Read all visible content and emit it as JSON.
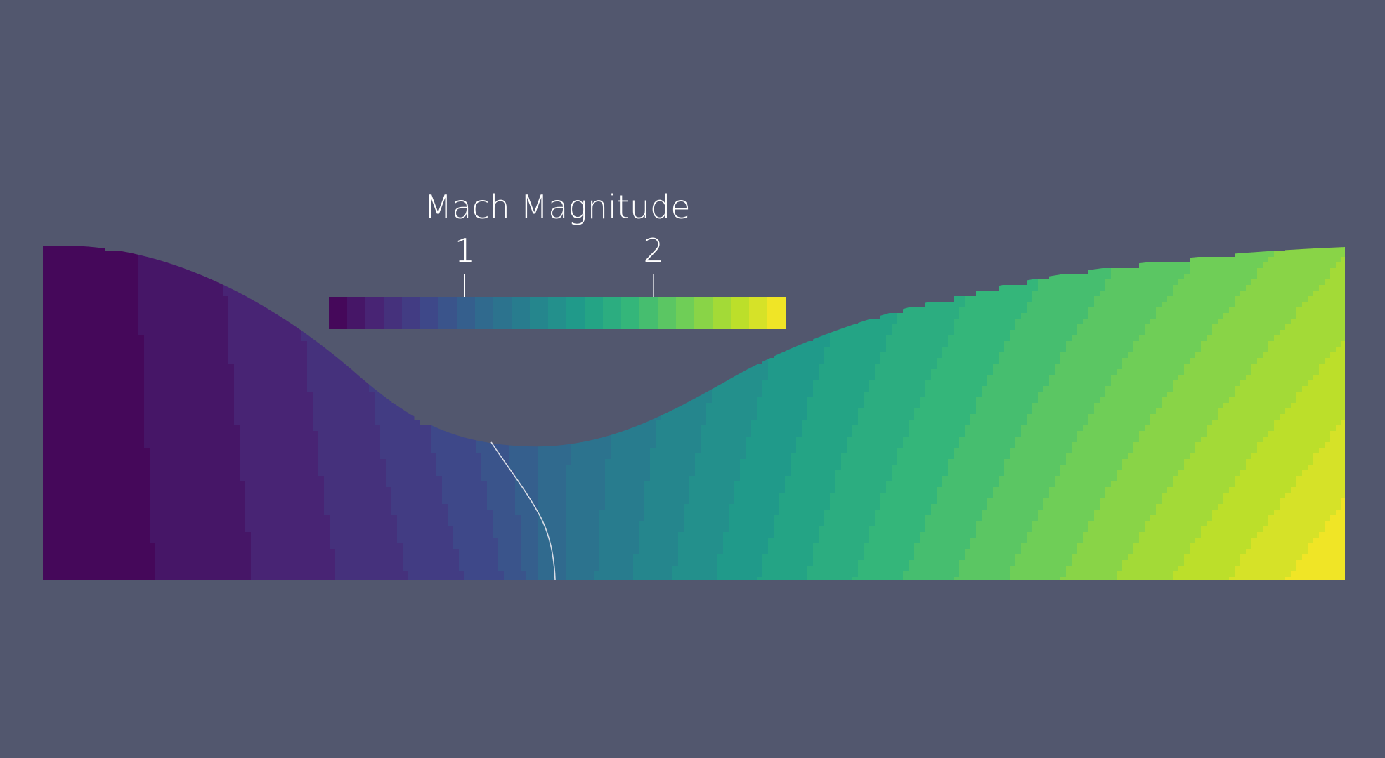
{
  "render_view": {
    "background_color": "#52576e",
    "field_name": "Mach Magnitude",
    "colormap": "viridis",
    "colormap_bins": 25,
    "value_range": [
      0.28,
      2.7
    ],
    "sonic_line_value": 1.0,
    "sonic_line_color": "#d8dce6"
  },
  "legend": {
    "title": "Mach Magnitude",
    "ticks": [
      {
        "label": "1",
        "value": 1
      },
      {
        "label": "2",
        "value": 2
      }
    ],
    "tick_color": "#ffffff"
  }
}
